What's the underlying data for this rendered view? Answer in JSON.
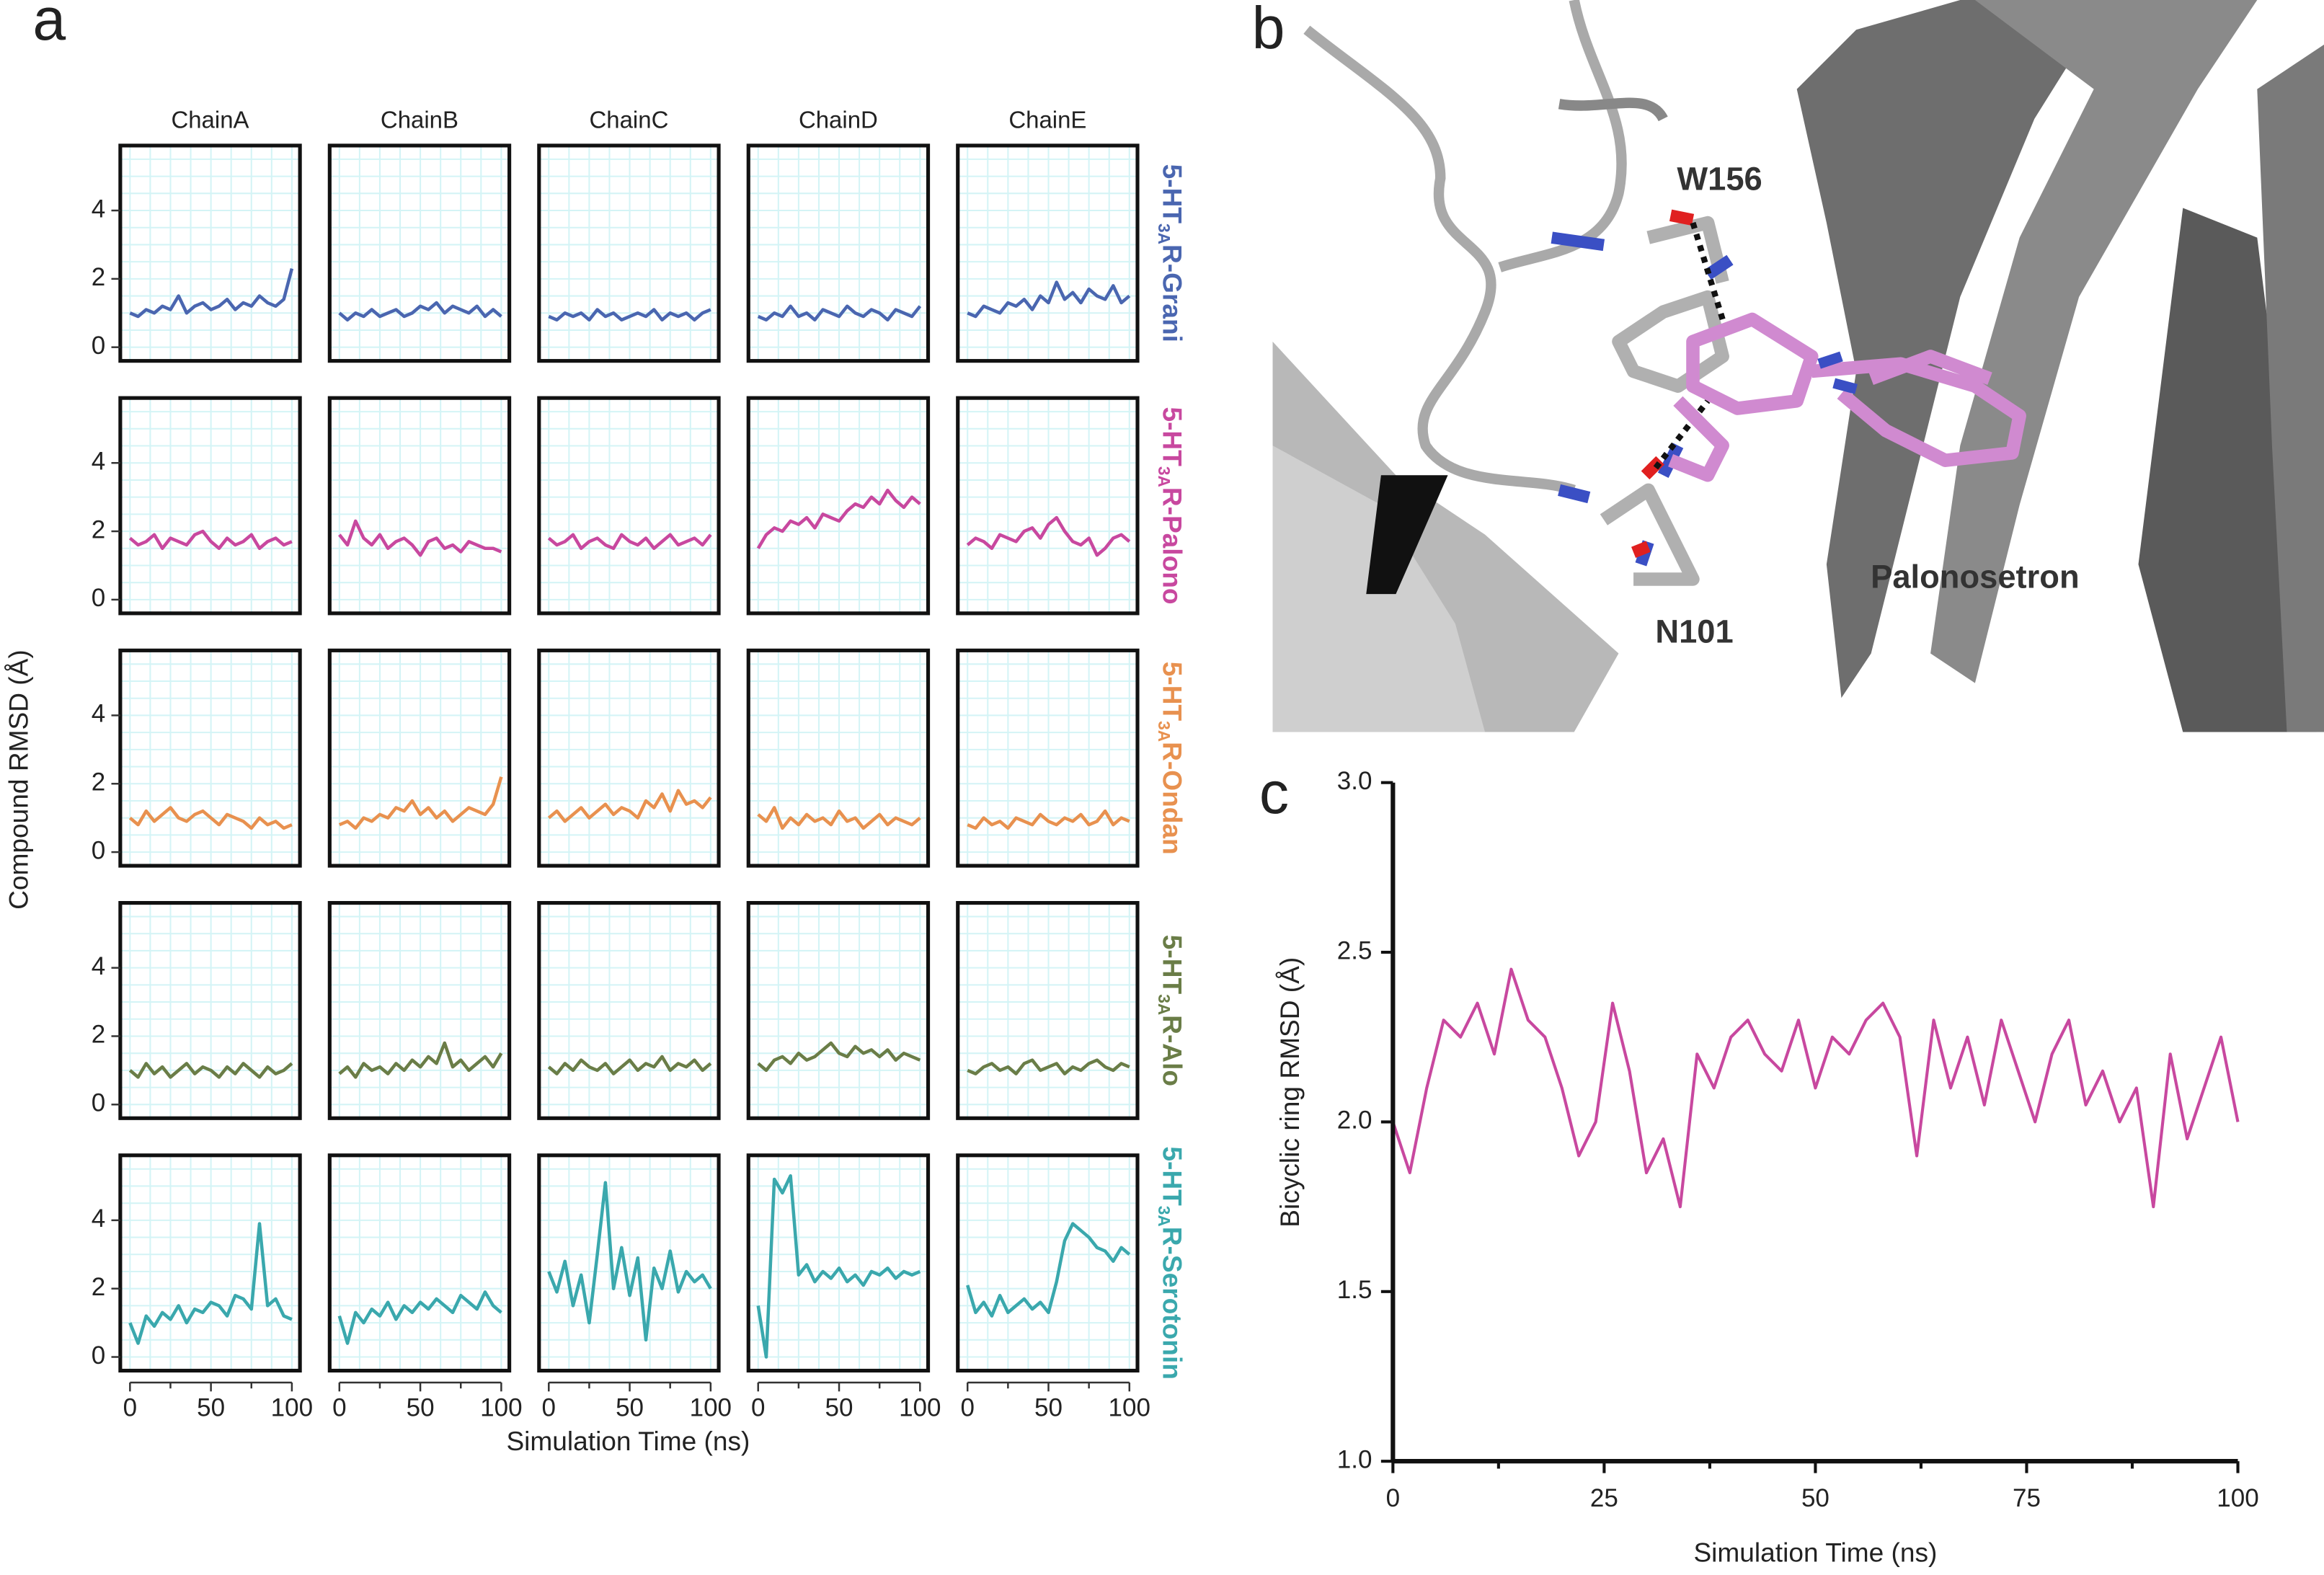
{
  "panel_labels": [
    "a",
    "b",
    "c"
  ],
  "panel_b": {
    "labels": [
      "W156",
      "N101",
      "Palonosetron"
    ]
  },
  "chart_data": [
    {
      "type": "small_multiples",
      "y_label": "Compound RMSD (Å)",
      "x_label": "Simulation Time (ns)",
      "columns": [
        "ChainA",
        "ChainB",
        "ChainC",
        "ChainD",
        "ChainE"
      ],
      "x": [
        0,
        5,
        10,
        15,
        20,
        25,
        30,
        35,
        40,
        45,
        50,
        55,
        60,
        65,
        70,
        75,
        80,
        85,
        90,
        95,
        100
      ],
      "xlim": [
        -6,
        105
      ],
      "ylim": [
        -0.4,
        5.9
      ],
      "xticks": [
        0,
        50,
        100
      ],
      "minor_xticks": [
        25,
        75
      ],
      "yticks": [
        0,
        2,
        4
      ],
      "grid": true,
      "grid_x": [
        0,
        12.5,
        25,
        37.5,
        50,
        62.5,
        75,
        87.5,
        100
      ],
      "grid_y": [
        0,
        0.5,
        1,
        1.5,
        2,
        2.5,
        3,
        3.5,
        4,
        4.5,
        5,
        5.5
      ],
      "rows": [
        {
          "label": [
            "5-HT",
            "3A",
            "R-Grani"
          ],
          "color": "#4a66b0",
          "series": [
            [
              1.0,
              0.9,
              1.1,
              1.0,
              1.2,
              1.1,
              1.5,
              1.0,
              1.2,
              1.3,
              1.1,
              1.2,
              1.4,
              1.1,
              1.3,
              1.2,
              1.5,
              1.3,
              1.2,
              1.4,
              2.3
            ],
            [
              1.0,
              0.8,
              1.0,
              0.9,
              1.1,
              0.9,
              1.0,
              1.1,
              0.9,
              1.0,
              1.2,
              1.1,
              1.3,
              1.0,
              1.2,
              1.1,
              1.0,
              1.2,
              0.9,
              1.1,
              0.9
            ],
            [
              0.9,
              0.8,
              1.0,
              0.9,
              1.0,
              0.8,
              1.1,
              0.9,
              1.0,
              0.8,
              0.9,
              1.0,
              0.9,
              1.1,
              0.8,
              1.0,
              0.9,
              1.0,
              0.8,
              1.0,
              1.1
            ],
            [
              0.9,
              0.8,
              1.0,
              0.9,
              1.2,
              0.9,
              1.0,
              0.8,
              1.1,
              1.0,
              0.9,
              1.2,
              1.0,
              0.9,
              1.1,
              1.0,
              0.8,
              1.1,
              1.0,
              0.9,
              1.2
            ],
            [
              1.0,
              0.9,
              1.2,
              1.1,
              1.0,
              1.3,
              1.2,
              1.4,
              1.1,
              1.5,
              1.3,
              1.9,
              1.4,
              1.6,
              1.3,
              1.7,
              1.5,
              1.4,
              1.8,
              1.3,
              1.5
            ]
          ]
        },
        {
          "label": [
            "5-HT",
            "3A",
            "R-Palono"
          ],
          "color": "#c8489f",
          "series": [
            [
              1.8,
              1.6,
              1.7,
              1.9,
              1.5,
              1.8,
              1.7,
              1.6,
              1.9,
              2.0,
              1.7,
              1.5,
              1.8,
              1.6,
              1.7,
              1.9,
              1.5,
              1.7,
              1.8,
              1.6,
              1.7
            ],
            [
              1.9,
              1.6,
              2.3,
              1.8,
              1.6,
              1.9,
              1.5,
              1.7,
              1.8,
              1.6,
              1.3,
              1.7,
              1.8,
              1.5,
              1.6,
              1.4,
              1.7,
              1.6,
              1.5,
              1.5,
              1.4
            ],
            [
              1.8,
              1.6,
              1.7,
              1.9,
              1.5,
              1.7,
              1.8,
              1.6,
              1.5,
              1.9,
              1.7,
              1.6,
              1.8,
              1.5,
              1.7,
              1.9,
              1.6,
              1.7,
              1.8,
              1.6,
              1.9
            ],
            [
              1.5,
              1.9,
              2.1,
              2.0,
              2.3,
              2.2,
              2.4,
              2.1,
              2.5,
              2.4,
              2.3,
              2.6,
              2.8,
              2.7,
              3.0,
              2.8,
              3.2,
              2.9,
              2.7,
              3.0,
              2.8
            ],
            [
              1.6,
              1.8,
              1.7,
              1.5,
              1.9,
              1.8,
              1.7,
              2.0,
              2.1,
              1.8,
              2.2,
              2.4,
              2.0,
              1.7,
              1.6,
              1.8,
              1.3,
              1.5,
              1.8,
              1.9,
              1.7
            ]
          ]
        },
        {
          "label": [
            "5-HT",
            "3A",
            "R-Ondan"
          ],
          "color": "#e8914f",
          "series": [
            [
              1.0,
              0.8,
              1.2,
              0.9,
              1.1,
              1.3,
              1.0,
              0.9,
              1.1,
              1.2,
              1.0,
              0.8,
              1.1,
              1.0,
              0.9,
              0.7,
              1.0,
              0.8,
              0.9,
              0.7,
              0.8
            ],
            [
              0.8,
              0.9,
              0.7,
              1.0,
              0.9,
              1.1,
              1.0,
              1.3,
              1.2,
              1.5,
              1.1,
              1.3,
              1.0,
              1.2,
              0.9,
              1.1,
              1.3,
              1.2,
              1.1,
              1.4,
              2.2
            ],
            [
              1.0,
              1.2,
              0.9,
              1.1,
              1.3,
              1.0,
              1.2,
              1.4,
              1.1,
              1.3,
              1.2,
              1.0,
              1.5,
              1.3,
              1.7,
              1.2,
              1.8,
              1.4,
              1.5,
              1.3,
              1.6
            ],
            [
              1.1,
              0.9,
              1.3,
              0.7,
              1.0,
              0.8,
              1.1,
              0.9,
              1.0,
              0.8,
              1.2,
              0.9,
              1.0,
              0.7,
              0.9,
              1.1,
              0.8,
              1.0,
              0.9,
              0.8,
              1.0
            ],
            [
              0.8,
              0.7,
              1.0,
              0.8,
              0.9,
              0.7,
              1.0,
              0.9,
              0.8,
              1.1,
              0.9,
              0.8,
              1.0,
              0.9,
              1.1,
              0.8,
              0.9,
              1.2,
              0.8,
              1.0,
              0.9
            ]
          ]
        },
        {
          "label": [
            "5-HT",
            "3A",
            "R-Alo"
          ],
          "color": "#6a7d47",
          "series": [
            [
              1.0,
              0.8,
              1.2,
              0.9,
              1.1,
              0.8,
              1.0,
              1.2,
              0.9,
              1.1,
              1.0,
              0.8,
              1.1,
              0.9,
              1.2,
              1.0,
              0.8,
              1.1,
              0.9,
              1.0,
              1.2
            ],
            [
              0.9,
              1.1,
              0.8,
              1.2,
              1.0,
              1.1,
              0.9,
              1.2,
              1.0,
              1.3,
              1.1,
              1.4,
              1.2,
              1.8,
              1.1,
              1.3,
              1.0,
              1.2,
              1.4,
              1.1,
              1.5
            ],
            [
              1.1,
              0.9,
              1.2,
              1.0,
              1.3,
              1.1,
              1.0,
              1.2,
              0.9,
              1.1,
              1.3,
              1.0,
              1.2,
              1.1,
              1.4,
              1.0,
              1.2,
              1.1,
              1.3,
              1.0,
              1.2
            ],
            [
              1.2,
              1.0,
              1.3,
              1.4,
              1.2,
              1.5,
              1.3,
              1.4,
              1.6,
              1.8,
              1.5,
              1.4,
              1.7,
              1.5,
              1.6,
              1.4,
              1.6,
              1.3,
              1.5,
              1.4,
              1.3
            ],
            [
              1.0,
              0.9,
              1.1,
              1.2,
              1.0,
              1.1,
              0.9,
              1.2,
              1.3,
              1.0,
              1.1,
              1.2,
              0.9,
              1.1,
              1.0,
              1.2,
              1.3,
              1.1,
              1.0,
              1.2,
              1.1
            ]
          ]
        },
        {
          "label": [
            "5-HT",
            "3A",
            "R-Serotonin"
          ],
          "color": "#3aa8ad",
          "series": [
            [
              1.0,
              0.4,
              1.2,
              0.9,
              1.3,
              1.1,
              1.5,
              1.0,
              1.4,
              1.3,
              1.6,
              1.5,
              1.2,
              1.8,
              1.7,
              1.4,
              3.9,
              1.5,
              1.7,
              1.2,
              1.1
            ],
            [
              1.2,
              0.4,
              1.3,
              1.0,
              1.4,
              1.2,
              1.6,
              1.1,
              1.5,
              1.3,
              1.6,
              1.4,
              1.7,
              1.5,
              1.3,
              1.8,
              1.6,
              1.4,
              1.9,
              1.5,
              1.3
            ],
            [
              2.5,
              1.9,
              2.8,
              1.5,
              2.4,
              1.0,
              3.0,
              5.1,
              2.0,
              3.2,
              1.8,
              2.9,
              0.5,
              2.6,
              2.0,
              3.1,
              1.9,
              2.5,
              2.2,
              2.4,
              2.0
            ],
            [
              1.5,
              0.0,
              5.2,
              4.8,
              5.3,
              2.4,
              2.7,
              2.2,
              2.5,
              2.3,
              2.6,
              2.2,
              2.4,
              2.1,
              2.5,
              2.4,
              2.6,
              2.3,
              2.5,
              2.4,
              2.5
            ],
            [
              2.1,
              1.3,
              1.6,
              1.2,
              1.8,
              1.3,
              1.5,
              1.7,
              1.4,
              1.6,
              1.3,
              2.2,
              3.4,
              3.9,
              3.7,
              3.5,
              3.2,
              3.1,
              2.8,
              3.2,
              3.0
            ]
          ]
        }
      ]
    },
    {
      "type": "line",
      "x_label": "Simulation Time (ns)",
      "y_label": "Bicyclic ring RMSD (Å)",
      "xlim": [
        0,
        100
      ],
      "ylim": [
        1,
        3
      ],
      "xticks": [
        0,
        25,
        50,
        75,
        100
      ],
      "minor_xticks": [
        12.5,
        37.5,
        62.5,
        87.5
      ],
      "yticks": [
        {
          "value": 1,
          "label": "1.0"
        },
        1.5,
        {
          "value": 2,
          "label": "2.0"
        },
        2.5,
        {
          "value": 3,
          "label": "3.0"
        }
      ],
      "x": [
        0,
        2,
        4,
        6,
        8,
        10,
        12,
        14,
        16,
        18,
        20,
        22,
        24,
        26,
        28,
        30,
        32,
        34,
        36,
        38,
        40,
        42,
        44,
        46,
        48,
        50,
        52,
        54,
        56,
        58,
        60,
        62,
        64,
        66,
        68,
        70,
        72,
        74,
        76,
        78,
        80,
        82,
        84,
        86,
        88,
        90,
        92,
        94,
        96,
        98,
        100
      ],
      "series": [
        {
          "color": "#c8489f",
          "values": [
            2.0,
            1.85,
            2.1,
            2.3,
            2.25,
            2.35,
            2.2,
            2.45,
            2.3,
            2.25,
            2.1,
            1.9,
            2.0,
            2.35,
            2.15,
            1.85,
            1.95,
            1.75,
            2.2,
            2.1,
            2.25,
            2.3,
            2.2,
            2.15,
            2.3,
            2.1,
            2.25,
            2.2,
            2.3,
            2.35,
            2.25,
            1.9,
            2.3,
            2.1,
            2.25,
            2.05,
            2.3,
            2.15,
            2.0,
            2.2,
            2.3,
            2.05,
            2.15,
            2.0,
            2.1,
            1.75,
            2.2,
            1.95,
            2.1,
            2.25,
            2.0
          ]
        }
      ]
    }
  ]
}
